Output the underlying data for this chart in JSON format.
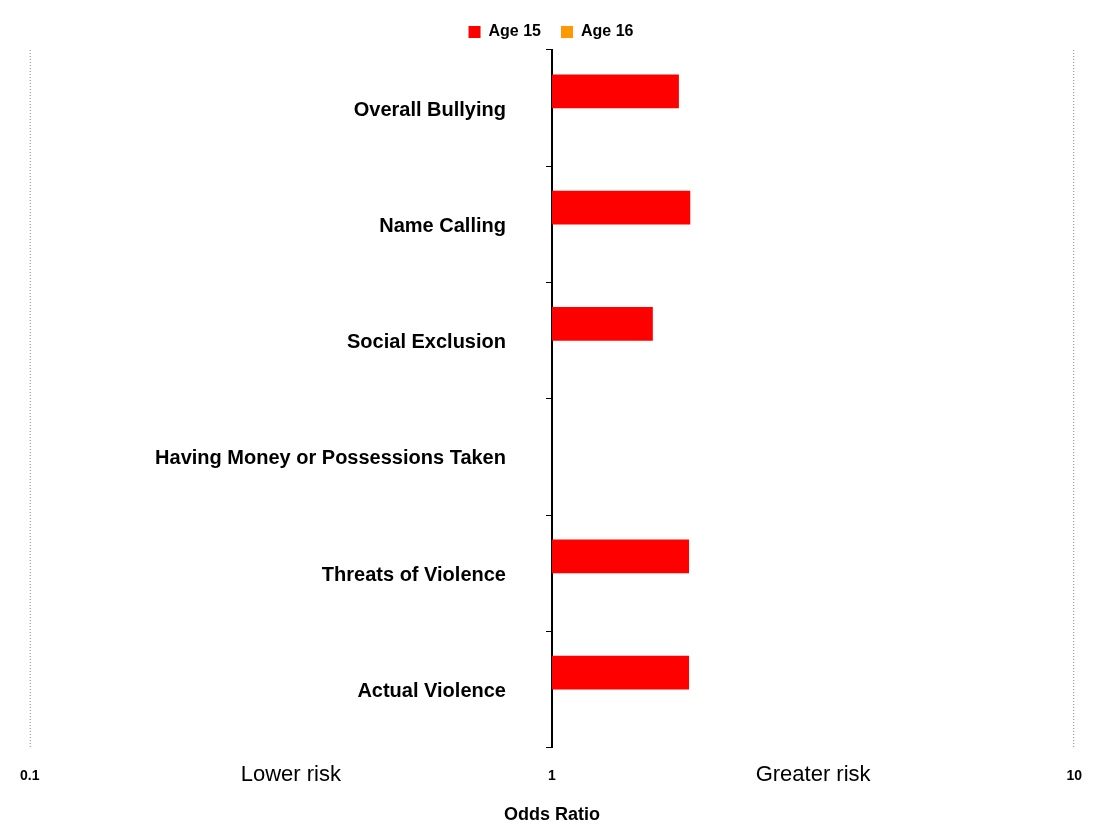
{
  "chart_data": {
    "type": "bar",
    "orientation": "horizontal",
    "log": "x",
    "categories": [
      "Overall Bullying",
      "Name Calling",
      "Social Exclusion",
      "Having Money or Possessions Taken",
      "Threats of Violence",
      "Actual Violence"
    ],
    "series": [
      {
        "name": "Age 15",
        "color": "#ff0000",
        "base": [
          1,
          1,
          1,
          null,
          1,
          1
        ],
        "values": [
          0.75,
          0.84,
          0.56,
          null,
          0.83,
          0.83
        ]
      },
      {
        "name": "Age 16",
        "color": "#ff9900",
        "base": [
          null,
          null,
          null,
          null,
          null,
          null
        ],
        "values": [
          null,
          null,
          null,
          null,
          null,
          null
        ]
      }
    ],
    "xlim": [
      0.1,
      10
    ],
    "xticks": [
      0.1,
      1,
      10
    ],
    "xlabel": "Odds Ratio",
    "annotations": [
      "Lower risk",
      "Greater risk"
    ],
    "legend": "top"
  }
}
